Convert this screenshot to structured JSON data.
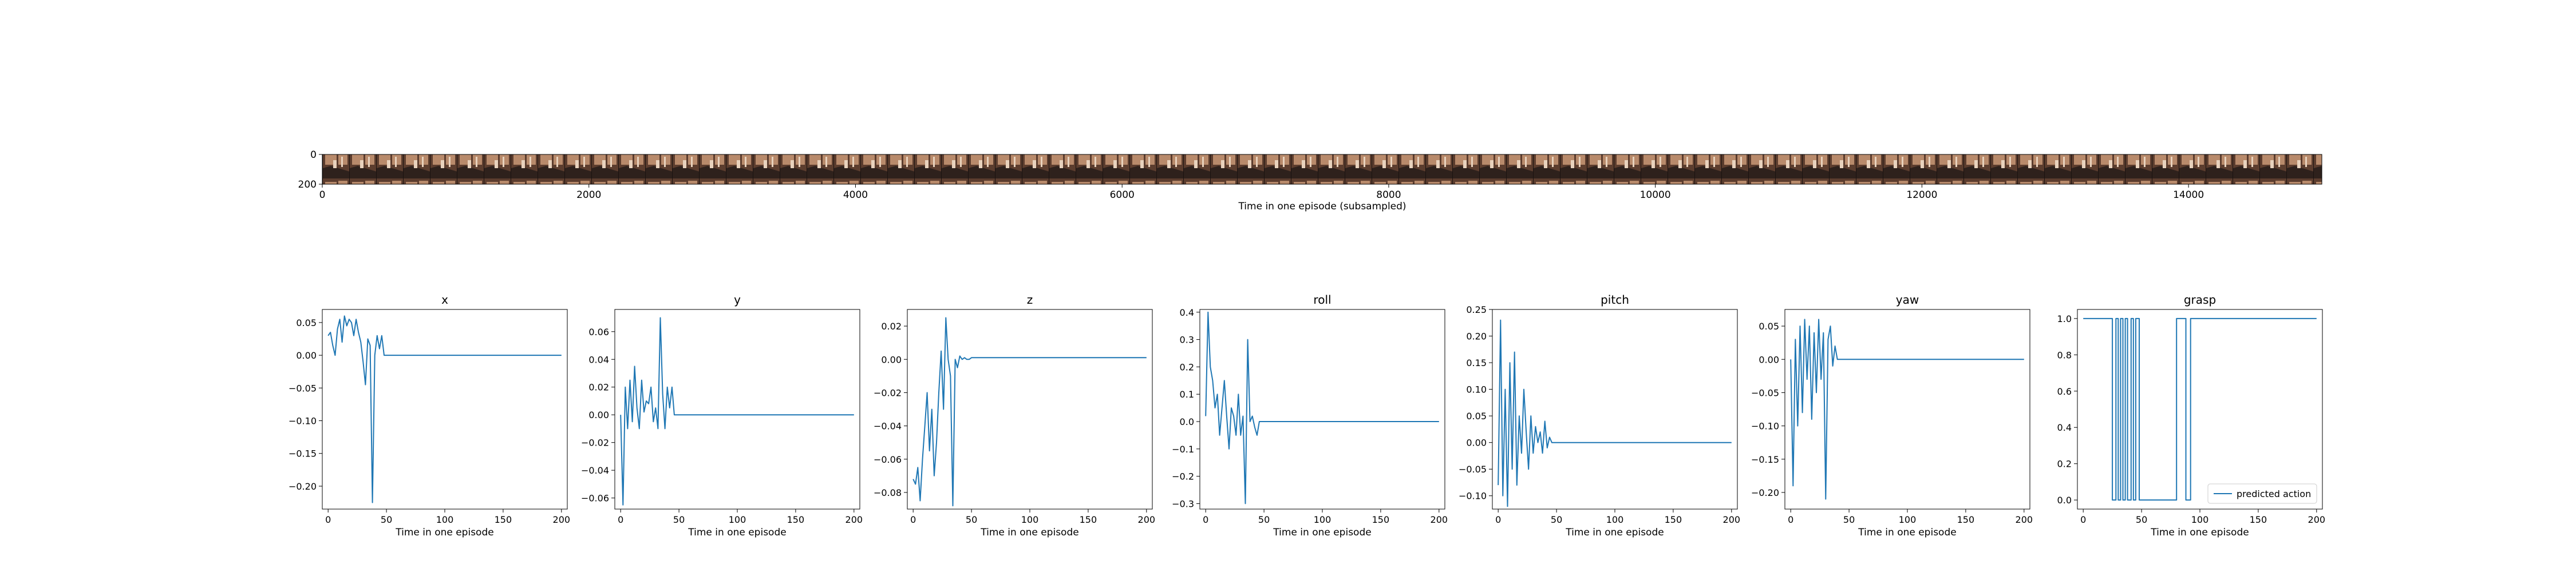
{
  "strip": {
    "xlabel": "Time in one episode (subsampled)",
    "x_range": [
      0,
      15000
    ],
    "x_ticks": [
      0,
      2000,
      4000,
      6000,
      8000,
      10000,
      12000,
      14000
    ],
    "y_ticks": [
      0,
      200
    ],
    "frame_colors": {
      "bg": "#5c3d2e",
      "wall": "#b88a6b",
      "table": "#2e211c",
      "highlight": "#e8d2bd"
    }
  },
  "series_color": "#1f77b4",
  "chart_data": [
    {
      "type": "line",
      "title": "x",
      "xlabel": "Time in one episode",
      "xlim": [
        -5,
        205
      ],
      "ylim": [
        -0.235,
        0.07
      ],
      "xticks": [
        0,
        50,
        100,
        150,
        200
      ],
      "yticks": [
        -0.2,
        -0.15,
        -0.1,
        -0.05,
        0.0,
        0.05
      ],
      "ytick_labels": [
        "−0.20",
        "−0.15",
        "−0.10",
        "−0.05",
        "0.00",
        "0.05"
      ],
      "x": [
        0,
        2,
        4,
        6,
        8,
        10,
        12,
        14,
        16,
        18,
        20,
        22,
        24,
        26,
        28,
        30,
        32,
        34,
        36,
        38,
        40,
        42,
        44,
        46,
        48,
        50,
        200
      ],
      "values": [
        0.03,
        0.035,
        0.015,
        0,
        0.04,
        0.055,
        0.02,
        0.06,
        0.045,
        0.055,
        0.05,
        0.03,
        0.055,
        0.035,
        0.02,
        -0.01,
        -0.045,
        0.025,
        0.015,
        -0.225,
        0,
        0.03,
        0.01,
        0.03,
        0,
        0,
        0
      ]
    },
    {
      "type": "line",
      "title": "y",
      "xlabel": "Time in one episode",
      "xlim": [
        -5,
        205
      ],
      "ylim": [
        -0.068,
        0.076
      ],
      "xticks": [
        0,
        50,
        100,
        150,
        200
      ],
      "yticks": [
        -0.06,
        -0.04,
        -0.02,
        0.0,
        0.02,
        0.04,
        0.06
      ],
      "ytick_labels": [
        "−0.06",
        "−0.04",
        "−0.02",
        "0.00",
        "0.02",
        "0.04",
        "0.06"
      ],
      "x": [
        0,
        2,
        4,
        6,
        8,
        10,
        12,
        14,
        16,
        18,
        20,
        22,
        24,
        26,
        28,
        30,
        32,
        34,
        36,
        38,
        40,
        42,
        44,
        46,
        48,
        50,
        200
      ],
      "values": [
        0,
        -0.065,
        0.02,
        -0.01,
        0.025,
        -0.005,
        0.035,
        0.005,
        -0.01,
        0.025,
        0.002,
        0.01,
        0.008,
        0.02,
        -0.005,
        0.005,
        -0.01,
        0.07,
        0.015,
        -0.01,
        0.02,
        0.005,
        0.02,
        0,
        0,
        0,
        0
      ]
    },
    {
      "type": "line",
      "title": "z",
      "xlabel": "Time in one episode",
      "xlim": [
        -5,
        205
      ],
      "ylim": [
        -0.09,
        0.03
      ],
      "xticks": [
        0,
        50,
        100,
        150,
        200
      ],
      "yticks": [
        -0.08,
        -0.06,
        -0.04,
        -0.02,
        0.0,
        0.02
      ],
      "ytick_labels": [
        "−0.08",
        "−0.06",
        "−0.04",
        "−0.02",
        "0.00",
        "0.02"
      ],
      "x": [
        0,
        2,
        4,
        6,
        8,
        10,
        12,
        14,
        16,
        18,
        20,
        22,
        24,
        26,
        28,
        30,
        32,
        34,
        36,
        38,
        40,
        42,
        44,
        46,
        48,
        50,
        200
      ],
      "values": [
        -0.072,
        -0.075,
        -0.065,
        -0.085,
        -0.06,
        -0.04,
        -0.02,
        -0.055,
        -0.03,
        -0.07,
        -0.05,
        -0.02,
        0.005,
        -0.03,
        0.025,
        0,
        -0.01,
        -0.088,
        0,
        -0.005,
        0.002,
        0,
        0.001,
        0,
        0,
        0.001,
        0.001
      ]
    },
    {
      "type": "line",
      "title": "roll",
      "xlabel": "Time in one episode",
      "xlim": [
        -5,
        205
      ],
      "ylim": [
        -0.32,
        0.41
      ],
      "xticks": [
        0,
        50,
        100,
        150,
        200
      ],
      "yticks": [
        -0.3,
        -0.2,
        -0.1,
        0.0,
        0.1,
        0.2,
        0.3,
        0.4
      ],
      "ytick_labels": [
        "−0.3",
        "−0.2",
        "−0.1",
        "0.0",
        "0.1",
        "0.2",
        "0.3",
        "0.4"
      ],
      "x": [
        0,
        2,
        4,
        6,
        8,
        10,
        12,
        14,
        16,
        18,
        20,
        22,
        24,
        26,
        28,
        30,
        32,
        34,
        36,
        38,
        40,
        42,
        44,
        46,
        48,
        50,
        200
      ],
      "values": [
        0.02,
        0.4,
        0.2,
        0.15,
        0.05,
        0.1,
        -0.05,
        0.05,
        0.15,
        0.02,
        -0.1,
        0.05,
        0.02,
        -0.05,
        0.1,
        -0.05,
        0.02,
        -0.3,
        0.3,
        0,
        0.02,
        -0.02,
        -0.05,
        0,
        0,
        0,
        0
      ]
    },
    {
      "type": "line",
      "title": "pitch",
      "xlabel": "Time in one episode",
      "xlim": [
        -5,
        205
      ],
      "ylim": [
        -0.125,
        0.25
      ],
      "xticks": [
        0,
        50,
        100,
        150,
        200
      ],
      "yticks": [
        -0.1,
        -0.05,
        0.0,
        0.05,
        0.1,
        0.15,
        0.2,
        0.25
      ],
      "ytick_labels": [
        "−0.10",
        "−0.05",
        "0.00",
        "0.05",
        "0.10",
        "0.15",
        "0.20",
        "0.25"
      ],
      "x": [
        0,
        2,
        4,
        6,
        8,
        10,
        12,
        14,
        16,
        18,
        20,
        22,
        24,
        26,
        28,
        30,
        32,
        34,
        36,
        38,
        40,
        42,
        44,
        46,
        48,
        50,
        200
      ],
      "values": [
        -0.08,
        0.23,
        -0.1,
        0.1,
        -0.12,
        0.15,
        -0.05,
        0.17,
        -0.08,
        0.05,
        -0.02,
        0.1,
        0.02,
        -0.05,
        0.05,
        -0.02,
        0.03,
        0,
        0.02,
        -0.02,
        0.04,
        -0.01,
        0.01,
        0,
        0,
        0,
        0
      ]
    },
    {
      "type": "line",
      "title": "yaw",
      "xlabel": "Time in one episode",
      "xlim": [
        -5,
        205
      ],
      "ylim": [
        -0.225,
        0.075
      ],
      "xticks": [
        0,
        50,
        100,
        150,
        200
      ],
      "yticks": [
        -0.2,
        -0.15,
        -0.1,
        -0.05,
        0.0,
        0.05
      ],
      "ytick_labels": [
        "−0.20",
        "−0.15",
        "−0.10",
        "−0.05",
        "0.00",
        "0.05"
      ],
      "x": [
        0,
        2,
        4,
        6,
        8,
        10,
        12,
        14,
        16,
        18,
        20,
        22,
        24,
        26,
        28,
        30,
        32,
        34,
        36,
        38,
        40,
        42,
        44,
        46,
        48,
        50,
        200
      ],
      "values": [
        0,
        -0.19,
        0.03,
        -0.1,
        0.05,
        -0.08,
        0.06,
        -0.03,
        0.05,
        -0.09,
        0.04,
        -0.05,
        0.06,
        -0.03,
        0.04,
        -0.21,
        0.03,
        0.05,
        -0.01,
        0.02,
        0,
        0,
        0,
        0,
        0,
        0,
        0
      ]
    },
    {
      "type": "line",
      "title": "grasp",
      "xlabel": "Time in one episode",
      "xlim": [
        -5,
        205
      ],
      "ylim": [
        -0.05,
        1.05
      ],
      "xticks": [
        0,
        50,
        100,
        150,
        200
      ],
      "yticks": [
        0.0,
        0.2,
        0.4,
        0.6,
        0.8,
        1.0
      ],
      "ytick_labels": [
        "0.0",
        "0.2",
        "0.4",
        "0.6",
        "0.8",
        "1.0"
      ],
      "x": [
        0,
        25,
        25,
        28,
        28,
        30,
        30,
        32,
        32,
        34,
        34,
        36,
        36,
        38,
        38,
        41,
        41,
        43,
        43,
        45,
        45,
        48,
        48,
        50,
        50,
        80,
        80,
        88,
        88,
        92,
        92,
        200
      ],
      "values": [
        1,
        1,
        0,
        0,
        1,
        1,
        0,
        0,
        1,
        1,
        0,
        0,
        1,
        1,
        0,
        0,
        1,
        1,
        0,
        0,
        1,
        1,
        0,
        0,
        0,
        0,
        1,
        1,
        0,
        0,
        1,
        1
      ],
      "legend": "predicted action",
      "legend_position": "lower-right"
    }
  ]
}
